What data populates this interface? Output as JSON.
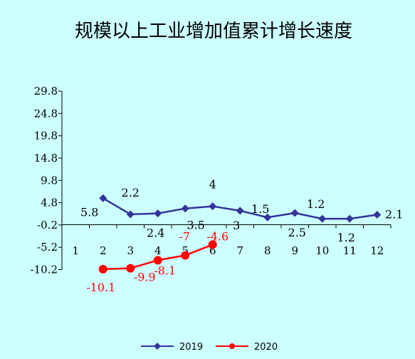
{
  "chart_data": {
    "type": "line",
    "title": "规模以上工业增加值累计增长速度",
    "categories": [
      "1",
      "2",
      "3",
      "4",
      "5",
      "6",
      "7",
      "8",
      "9",
      "10",
      "11",
      "12"
    ],
    "y_ticks": [
      "29.8",
      "24.8",
      "19.8",
      "14.8",
      "9.8",
      "4.8",
      "-0.2",
      "-5.2",
      "-10.2"
    ],
    "ylim": [
      -10.2,
      29.8
    ],
    "grid": false,
    "legend_position": "bottom",
    "series": [
      {
        "name": "2019",
        "color": "#333399",
        "marker": "diamond",
        "values": [
          null,
          5.8,
          2.2,
          2.4,
          3.5,
          4.0,
          3.0,
          1.5,
          2.5,
          1.2,
          1.2,
          2.1
        ],
        "labels": [
          null,
          "5.8",
          "2.2",
          "2.4",
          "3.5",
          "4",
          "3",
          "1.5",
          "2.5",
          "1.2",
          "1.2",
          "2.1"
        ]
      },
      {
        "name": "2020",
        "color": "#FF0000",
        "marker": "circle",
        "values": [
          null,
          -10.1,
          -9.9,
          -8.1,
          -7.0,
          -4.6,
          null,
          null,
          null,
          null,
          null,
          null
        ],
        "labels": [
          null,
          "-10.1",
          "-9.9",
          "-8.1",
          "-7",
          "-4.6",
          null,
          null,
          null,
          null,
          null,
          null
        ]
      }
    ]
  }
}
